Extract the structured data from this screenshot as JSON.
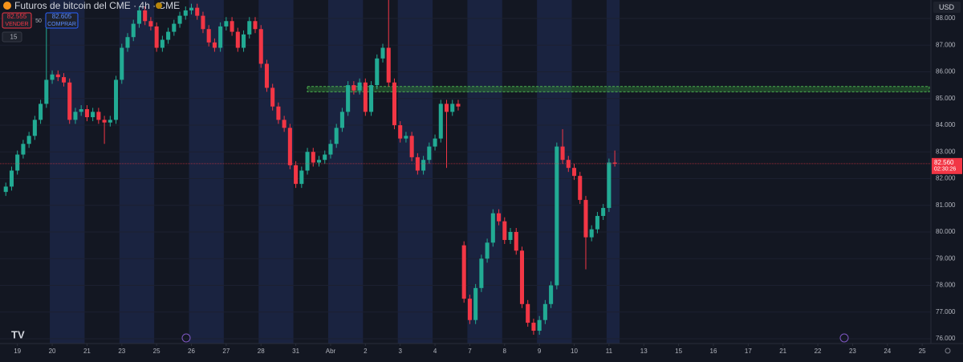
{
  "toolbar": {
    "title": "Futuros de bitcoin del CME · 4h · CME",
    "sell_price": "82.555",
    "sell_label": "VENDER",
    "spread": "50",
    "buy_price": "82.605",
    "buy_label": "COMPRAR",
    "quantity": "15",
    "currency": "USD"
  },
  "chart_data": {
    "type": "candlestick",
    "up_color": "#22ab94",
    "down_color": "#f23645",
    "xlim": [
      -3,
      157.5
    ],
    "ylim": [
      75820,
      88690
    ],
    "xticks": [
      {
        "value": 0,
        "label": "19"
      },
      {
        "value": 6,
        "label": "20"
      },
      {
        "value": 12,
        "label": "21"
      },
      {
        "value": 18,
        "label": "23"
      },
      {
        "value": 24,
        "label": "25"
      },
      {
        "value": 30,
        "label": "26"
      },
      {
        "value": 36,
        "label": "27"
      },
      {
        "value": 42,
        "label": "28"
      },
      {
        "value": 48,
        "label": "31"
      },
      {
        "value": 54,
        "label": "Abr"
      },
      {
        "value": 60,
        "label": "2"
      },
      {
        "value": 66,
        "label": "3"
      },
      {
        "value": 72,
        "label": "4"
      },
      {
        "value": 78,
        "label": "7"
      },
      {
        "value": 84,
        "label": "8"
      },
      {
        "value": 90,
        "label": "9"
      },
      {
        "value": 96,
        "label": "10"
      },
      {
        "value": 102,
        "label": "11"
      },
      {
        "value": 108,
        "label": "13"
      },
      {
        "value": 114,
        "label": "15"
      },
      {
        "value": 120,
        "label": "16"
      },
      {
        "value": 126,
        "label": "17"
      },
      {
        "value": 132,
        "label": "21"
      },
      {
        "value": 138,
        "label": "22"
      },
      {
        "value": 144,
        "label": "23"
      },
      {
        "value": 150,
        "label": "24"
      },
      {
        "value": 156,
        "label": "25"
      }
    ],
    "yticks": [
      {
        "value": 76000,
        "label": "76.000"
      },
      {
        "value": 77000,
        "label": "77.000"
      },
      {
        "value": 78000,
        "label": "78.000"
      },
      {
        "value": 79000,
        "label": "79.000"
      },
      {
        "value": 80000,
        "label": "80.000"
      },
      {
        "value": 81000,
        "label": "81.000"
      },
      {
        "value": 82000,
        "label": "82.000"
      },
      {
        "value": 83000,
        "label": "83.000"
      },
      {
        "value": 84000,
        "label": "84.000"
      },
      {
        "value": 85000,
        "label": "85.000"
      },
      {
        "value": 86000,
        "label": "86.000"
      },
      {
        "value": 87000,
        "label": "87.000"
      },
      {
        "value": 88000,
        "label": "88.000"
      }
    ],
    "zone": {
      "low": 85250,
      "high": 85450,
      "color": "#2e7d32"
    },
    "last_price": {
      "value": 82560,
      "label": "82.560",
      "countdown": "02:30:26",
      "color": "#f23645"
    },
    "x": [
      -2,
      -1,
      0,
      1,
      2,
      3,
      4,
      5,
      6,
      7,
      8,
      9,
      10,
      11,
      12,
      13,
      14,
      15,
      16,
      17,
      18,
      19,
      20,
      21,
      22,
      23,
      24,
      25,
      26,
      27,
      28,
      29,
      30,
      31,
      32,
      33,
      34,
      35,
      36,
      37,
      38,
      39,
      40,
      41,
      42,
      43,
      44,
      45,
      46,
      47,
      48,
      49,
      50,
      51,
      52,
      53,
      54,
      55,
      56,
      57,
      58,
      59,
      60,
      61,
      62,
      63,
      64,
      65,
      66,
      67,
      68,
      69,
      70,
      71,
      72,
      73,
      74,
      75,
      76,
      77,
      78,
      79,
      80,
      81,
      82,
      83,
      84,
      85,
      86,
      87,
      88,
      89,
      90,
      91,
      92,
      93,
      94,
      95,
      96,
      97,
      98,
      99,
      100,
      101,
      102,
      103
    ],
    "open": [
      81500,
      81700,
      82300,
      82900,
      83300,
      83600,
      84200,
      84800,
      85700,
      85900,
      85800,
      85600,
      84200,
      84500,
      84600,
      84300,
      84500,
      84200,
      84100,
      84200,
      85700,
      86900,
      87300,
      87800,
      88300,
      87900,
      87700,
      86900,
      87200,
      87500,
      87800,
      88100,
      88300,
      88400,
      88100,
      87600,
      87100,
      86900,
      87700,
      87900,
      87500,
      86900,
      87400,
      87900,
      87600,
      86300,
      85400,
      84700,
      84200,
      83900,
      82500,
      81800,
      82300,
      83000,
      82600,
      82700,
      82900,
      83300,
      83900,
      84500,
      85500,
      85300,
      85600,
      84500,
      85500,
      86500,
      86900,
      85600,
      84000,
      83500,
      83600,
      82800,
      82300,
      82700,
      83200,
      83500,
      84800,
      84500,
      84800,
      79500,
      77500,
      76700,
      77900,
      79000,
      79600,
      80700,
      80400,
      79700,
      80000,
      79300,
      77300,
      76600,
      76300,
      76700,
      77300,
      78000,
      83200,
      82700,
      82400,
      82100,
      81200,
      79800,
      80100,
      80600,
      80900,
      82600
    ],
    "high": [
      81850,
      82450,
      83050,
      83450,
      83750,
      84350,
      84950,
      88000,
      86050,
      86050,
      85950,
      85750,
      84650,
      84750,
      84750,
      84650,
      84650,
      84350,
      84350,
      85850,
      87050,
      87450,
      87950,
      88450,
      88450,
      88050,
      87850,
      87350,
      87650,
      87950,
      88250,
      88450,
      88550,
      88550,
      88250,
      87750,
      87250,
      87850,
      88050,
      88050,
      87650,
      87550,
      88050,
      88050,
      87750,
      86450,
      85550,
      84850,
      84350,
      84050,
      82650,
      82450,
      83150,
      83150,
      82850,
      83050,
      83450,
      84050,
      84650,
      85650,
      85650,
      85750,
      85750,
      85650,
      86650,
      87050,
      88700,
      85750,
      84150,
      83750,
      83750,
      82950,
      82850,
      83350,
      83650,
      84950,
      84950,
      84950,
      84950,
      79650,
      77650,
      78050,
      79150,
      79750,
      80850,
      80850,
      80550,
      80150,
      80150,
      79450,
      77450,
      76750,
      76850,
      77450,
      78150,
      83350,
      83850,
      82850,
      82550,
      82250,
      81350,
      80250,
      80750,
      81050,
      82750,
      83050
    ],
    "low": [
      81350,
      81550,
      82150,
      82750,
      83150,
      83450,
      84050,
      84650,
      85550,
      85650,
      85450,
      84050,
      84050,
      84350,
      84150,
      84150,
      84050,
      83300,
      83950,
      84050,
      85550,
      86750,
      87150,
      87650,
      87750,
      87550,
      86750,
      86750,
      87050,
      87350,
      87650,
      87950,
      88150,
      87950,
      87450,
      86950,
      86750,
      86750,
      87550,
      87350,
      86750,
      86750,
      87250,
      87450,
      86150,
      85250,
      84550,
      84050,
      83750,
      82350,
      81650,
      81650,
      82150,
      82450,
      82450,
      82550,
      82750,
      83150,
      83750,
      84350,
      85150,
      85150,
      84350,
      84350,
      85350,
      86350,
      85450,
      83850,
      83350,
      83350,
      82650,
      82150,
      82150,
      82550,
      83050,
      83350,
      82400,
      84350,
      84550,
      77350,
      76550,
      76550,
      77750,
      78850,
      79450,
      80250,
      79550,
      79550,
      79150,
      77150,
      76450,
      76150,
      76150,
      76550,
      77150,
      77850,
      82550,
      82250,
      81950,
      81050,
      78600,
      79650,
      79950,
      80450,
      80750,
      82450
    ],
    "close": [
      81700,
      82300,
      82900,
      83300,
      83600,
      84200,
      84800,
      85700,
      85900,
      85800,
      85600,
      84200,
      84500,
      84600,
      84300,
      84500,
      84200,
      84100,
      84200,
      85700,
      86900,
      87300,
      87800,
      88300,
      87900,
      87700,
      86900,
      87200,
      87500,
      87800,
      88100,
      88300,
      88400,
      88100,
      87600,
      87100,
      86900,
      87700,
      87900,
      87500,
      86900,
      87400,
      87900,
      87600,
      86300,
      85400,
      84700,
      84200,
      83900,
      82500,
      81800,
      82300,
      83000,
      82600,
      82700,
      82900,
      83300,
      83900,
      84500,
      85500,
      85300,
      85600,
      84500,
      85500,
      86500,
      86900,
      85600,
      84000,
      83500,
      83600,
      82800,
      82300,
      82700,
      83200,
      83500,
      84800,
      84500,
      84800,
      84700,
      77500,
      76700,
      77900,
      79000,
      79600,
      80700,
      80400,
      79700,
      80000,
      79300,
      77300,
      76600,
      76300,
      76700,
      77300,
      78000,
      83200,
      82700,
      82400,
      82100,
      81200,
      79800,
      80100,
      80600,
      80900,
      82600,
      82560
    ]
  }
}
